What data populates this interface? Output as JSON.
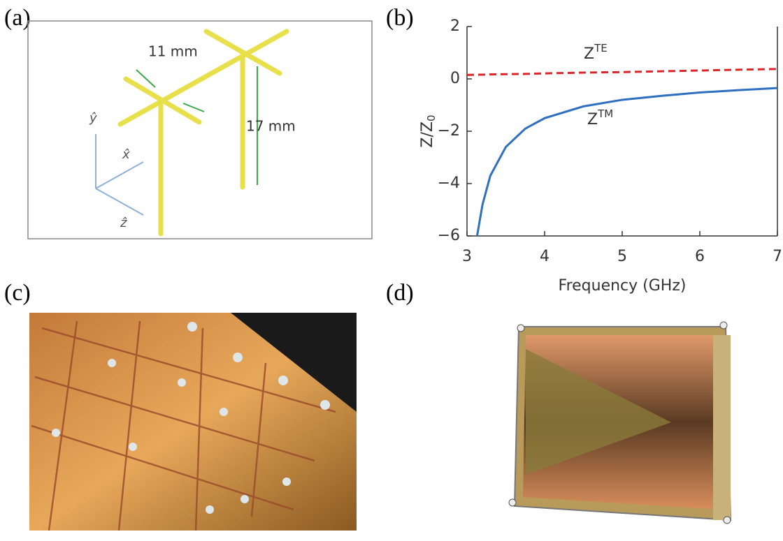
{
  "panel_labels": [
    "(a)",
    "(b)",
    "(c)",
    "(d)"
  ],
  "diagram": {
    "length_labels": [
      "11 mm",
      "17 mm"
    ],
    "axis_labels": [
      "ŷ",
      "x̂",
      "ẑ"
    ]
  },
  "chart_data": {
    "type": "line",
    "xlabel": "Frequency (GHz)",
    "ylabel": {
      "text": "Z/Z",
      "sub": "0"
    },
    "x": [
      3,
      3.13,
      3.2,
      3.3,
      3.5,
      3.75,
      4,
      4.5,
      5,
      5.5,
      6,
      6.5,
      7
    ],
    "series": [
      {
        "name": {
          "base": "Z",
          "sup": "TE"
        },
        "color": "#d9262b",
        "dashed": true,
        "values": [
          0.15,
          0.16,
          0.16,
          0.17,
          0.18,
          0.19,
          0.21,
          0.24,
          0.26,
          0.29,
          0.32,
          0.35,
          0.38
        ]
      },
      {
        "name": {
          "base": "Z",
          "sup": "TM"
        },
        "color": "#2f6fbf",
        "dashed": false,
        "values": [
          null,
          -6,
          -4.8,
          -3.7,
          -2.6,
          -1.9,
          -1.5,
          -1.05,
          -0.8,
          -0.65,
          -0.52,
          -0.43,
          -0.35
        ]
      }
    ],
    "xlim": [
      3,
      7
    ],
    "xticks": [
      3,
      4,
      5,
      6,
      7
    ],
    "ylim": [
      -6,
      2
    ],
    "yticks": [
      {
        "value": -6,
        "label": "−6"
      },
      {
        "value": -4,
        "label": "−4"
      },
      {
        "value": -2,
        "label": "−2"
      },
      0,
      2
    ]
  }
}
